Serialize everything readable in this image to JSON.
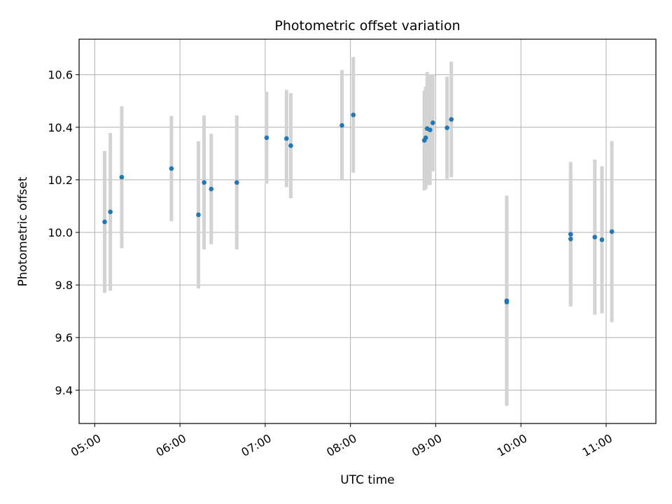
{
  "chart_data": {
    "type": "scatter",
    "title": "Photometric offset variation",
    "xlabel": "UTC time",
    "ylabel": "Photometric offset",
    "x_unit": "UTC HH:MM",
    "xlim": [
      "04:49",
      "11:35"
    ],
    "ylim": [
      9.273,
      10.735
    ],
    "xticks": [
      "05:00",
      "06:00",
      "07:00",
      "08:00",
      "09:00",
      "10:00",
      "11:00"
    ],
    "yticks": [
      "9.4",
      "9.6",
      "9.8",
      "10.0",
      "10.2",
      "10.4",
      "10.6"
    ],
    "grid": true,
    "point_color": "#1f77b4",
    "errorbar_color": "#d3d3d3",
    "points": [
      {
        "x": "05:07",
        "y": 10.04,
        "err": 0.27
      },
      {
        "x": "05:11",
        "y": 10.078,
        "err": 0.3
      },
      {
        "x": "05:19",
        "y": 10.21,
        "err": 0.27
      },
      {
        "x": "05:54",
        "y": 10.243,
        "err": 0.2
      },
      {
        "x": "06:13",
        "y": 10.067,
        "err": 0.28
      },
      {
        "x": "06:17",
        "y": 10.19,
        "err": 0.255
      },
      {
        "x": "06:22",
        "y": 10.165,
        "err": 0.21
      },
      {
        "x": "06:40",
        "y": 10.19,
        "err": 0.255
      },
      {
        "x": "07:01",
        "y": 10.36,
        "err": 0.175
      },
      {
        "x": "07:15",
        "y": 10.357,
        "err": 0.185
      },
      {
        "x": "07:18",
        "y": 10.33,
        "err": 0.2
      },
      {
        "x": "07:54",
        "y": 10.407,
        "err": 0.21
      },
      {
        "x": "08:02",
        "y": 10.447,
        "err": 0.22
      },
      {
        "x": "08:52",
        "y": 10.35,
        "err": 0.19
      },
      {
        "x": "08:53",
        "y": 10.36,
        "err": 0.195
      },
      {
        "x": "08:54",
        "y": 10.395,
        "err": 0.215
      },
      {
        "x": "08:56",
        "y": 10.39,
        "err": 0.21
      },
      {
        "x": "08:58",
        "y": 10.417,
        "err": 0.185
      },
      {
        "x": "09:08",
        "y": 10.398,
        "err": 0.195
      },
      {
        "x": "09:11",
        "y": 10.43,
        "err": 0.22
      },
      {
        "x": "09:50",
        "y": 9.74,
        "err": 0.4
      },
      {
        "x": "09:50",
        "y": 9.735,
        "err": 0.39
      },
      {
        "x": "10:35",
        "y": 9.975,
        "err": 0.255
      },
      {
        "x": "10:35",
        "y": 9.993,
        "err": 0.275
      },
      {
        "x": "10:52",
        "y": 9.982,
        "err": 0.295
      },
      {
        "x": "10:57",
        "y": 9.972,
        "err": 0.28
      },
      {
        "x": "11:04",
        "y": 10.003,
        "err": 0.345
      }
    ]
  }
}
